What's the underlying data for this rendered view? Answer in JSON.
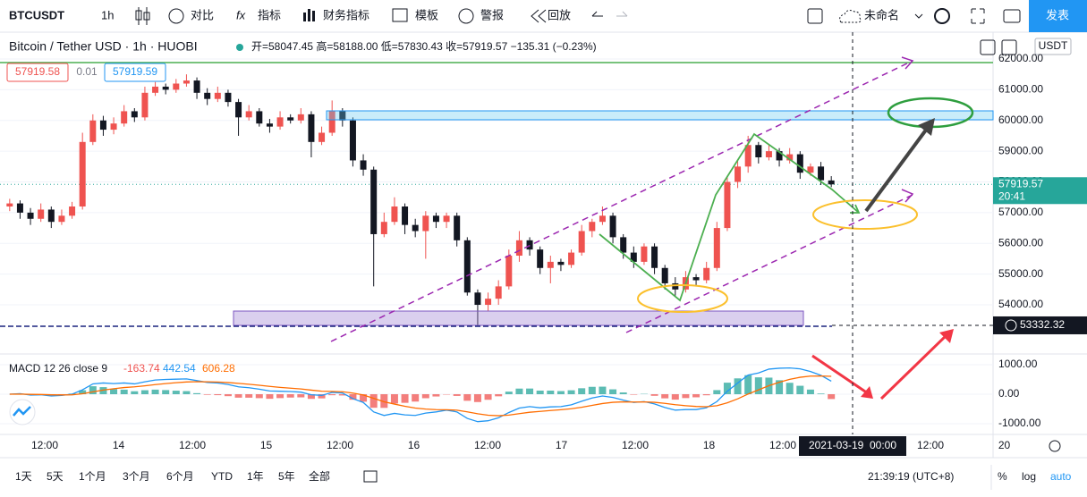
{
  "toolbar": {
    "symbol": "BTCUSDT",
    "interval": "1h",
    "items": [
      "对比",
      "指标",
      "财务指标",
      "模板",
      "警报",
      "回放"
    ],
    "layout_name": "未命名",
    "publish": "发表"
  },
  "chart_data": [
    {
      "type": "candlestick",
      "title": "Bitcoin / Tether USD · 1h · HUOBI",
      "subtitle": "开=58047.45 高=58188.00 低=57830.43 收=57919.57 −135.31 (−0.23%)",
      "order": [
        "57919.58",
        "0.01",
        "57919.59"
      ],
      "currency": "USDT",
      "countdown": "20:41",
      "crosshair": {
        "price": 53332.32,
        "time_label": "2021-03-19  00:00"
      },
      "xtick_labels": [
        "12:00",
        "14",
        "12:00",
        "15",
        "12:00",
        "16",
        "12:00",
        "17",
        "12:00",
        "18",
        "12:00",
        null,
        "12:00",
        "20"
      ],
      "up_color": "#ef5350",
      "down_color": "#131722",
      "last_price_color": "#26a69a",
      "grid": true,
      "ylim": [
        52430,
        62756
      ],
      "yticks": [
        {
          "value": 54000,
          "label": "54000.00"
        },
        {
          "value": 55000,
          "label": "55000.00"
        },
        {
          "value": 56000,
          "label": "56000.00"
        },
        {
          "value": 57000,
          "label": "57000.00"
        },
        {
          "value": 58000,
          "label": "58000.00"
        },
        {
          "value": 59000,
          "label": "59000.00"
        },
        {
          "value": 60000,
          "label": "60000.00"
        },
        {
          "value": 61000,
          "label": "61000.00"
        },
        {
          "value": 62000,
          "label": "62000.00"
        }
      ],
      "open": [
        57200,
        57300,
        57000,
        56800,
        57100,
        56700,
        56900,
        57200,
        59300,
        60000,
        59700,
        59900,
        60300,
        60100,
        60900,
        61100,
        61000,
        61200,
        61300,
        60900,
        60700,
        60900,
        60600,
        60100,
        60300,
        59900,
        59800,
        60100,
        60000,
        60200,
        59300,
        59600,
        60300,
        60000,
        58700,
        58400,
        56300,
        56700,
        57200,
        56600,
        56400,
        56900,
        56700,
        56900,
        56100,
        54400,
        54000,
        54200,
        54600,
        55600,
        56100,
        55800,
        55200,
        55400,
        55300,
        55700,
        56400,
        56700,
        56900,
        56200,
        55700,
        55400,
        55900,
        55200,
        54700,
        54500,
        54900,
        54800,
        55200,
        56500,
        58000,
        58500,
        59200,
        58800,
        59000,
        58700,
        58900,
        58300,
        58500,
        58047.45
      ],
      "high": [
        57450,
        57400,
        57150,
        57300,
        57200,
        57100,
        57350,
        59600,
        60200,
        60150,
        60100,
        60500,
        60400,
        61100,
        61250,
        61200,
        61350,
        61500,
        61400,
        61050,
        61100,
        61000,
        60700,
        60500,
        60400,
        60050,
        60300,
        60200,
        60400,
        60300,
        59800,
        60650,
        60400,
        60100,
        58900,
        58500,
        57000,
        57500,
        57300,
        56800,
        57050,
        57000,
        57000,
        57000,
        56200,
        54500,
        54400,
        54800,
        55800,
        56400,
        56200,
        55900,
        55600,
        55500,
        55800,
        56600,
        56800,
        57200,
        57000,
        56300,
        55900,
        56000,
        56000,
        55300,
        54900,
        55100,
        55000,
        55400,
        56700,
        58200,
        58700,
        59500,
        59300,
        59200,
        59100,
        59100,
        59000,
        58600,
        58650,
        58188
      ],
      "low": [
        57050,
        56800,
        56600,
        56700,
        56500,
        56600,
        56800,
        57100,
        59200,
        59500,
        59550,
        59800,
        59950,
        60000,
        60800,
        60850,
        60900,
        61100,
        60700,
        60500,
        60600,
        60450,
        59500,
        60000,
        59800,
        59600,
        59700,
        59900,
        59900,
        58800,
        59200,
        59500,
        59800,
        58500,
        58200,
        54600,
        56200,
        56600,
        56300,
        56200,
        55500,
        56500,
        56500,
        55900,
        54300,
        53300,
        53800,
        54000,
        54500,
        55400,
        55600,
        55000,
        54700,
        55100,
        55200,
        55600,
        56200,
        56600,
        56000,
        55500,
        55200,
        55300,
        55000,
        54500,
        54300,
        54400,
        54600,
        54700,
        55100,
        56400,
        57800,
        58300,
        58600,
        58700,
        58500,
        58600,
        58100,
        58200,
        57900,
        57830.43
      ],
      "close": [
        57300,
        57000,
        56800,
        57100,
        56700,
        56900,
        57200,
        59300,
        60000,
        59700,
        59900,
        60300,
        60100,
        60900,
        61100,
        61000,
        61200,
        61300,
        60900,
        60700,
        60900,
        60600,
        60100,
        60300,
        59900,
        59800,
        60100,
        60000,
        60200,
        59300,
        59600,
        60300,
        60000,
        58700,
        58400,
        56300,
        56700,
        57200,
        56600,
        56400,
        56900,
        56700,
        56900,
        56100,
        54400,
        54000,
        54200,
        54600,
        55600,
        56100,
        55800,
        55200,
        55400,
        55300,
        55700,
        56400,
        56700,
        56900,
        56200,
        55700,
        55400,
        55900,
        55200,
        54700,
        54500,
        54900,
        54800,
        55200,
        56500,
        58000,
        58500,
        59200,
        58800,
        59000,
        58700,
        58900,
        58300,
        58500,
        58054.88,
        57919.57
      ]
    },
    {
      "type": "macd",
      "title": "MACD 12 26 close 9",
      "ylim": [
        -1333,
        1303
      ],
      "yticks": [
        {
          "value": 1000,
          "label": "1000.00"
        },
        {
          "value": 0,
          "label": "0.00"
        },
        {
          "value": -1000,
          "label": "-1000.00"
        }
      ],
      "series": [
        {
          "color": "#2196f3",
          "values": [
            0,
            20,
            -30,
            -20,
            -60,
            -40,
            0,
            150,
            350,
            380,
            360,
            380,
            350,
            420,
            480,
            500,
            510,
            520,
            460,
            400,
            380,
            330,
            250,
            220,
            170,
            110,
            100,
            90,
            70,
            -20,
            -40,
            60,
            40,
            -150,
            -280,
            -600,
            -720,
            -650,
            -700,
            -720,
            -640,
            -600,
            -540,
            -600,
            -820,
            -930,
            -900,
            -800,
            -620,
            -470,
            -420,
            -460,
            -430,
            -420,
            -360,
            -240,
            -130,
            -60,
            -110,
            -200,
            -280,
            -250,
            -330,
            -450,
            -540,
            -520,
            -520,
            -460,
            -250,
            100,
            380,
            650,
            720,
            850,
            880,
            890,
            860,
            770,
            640,
            442.54
          ]
        },
        {
          "color": "#ff6d00",
          "values": [
            0,
            5,
            -5,
            -10,
            -20,
            -25,
            -20,
            15,
            80,
            140,
            185,
            225,
            250,
            285,
            325,
            360,
            390,
            415,
            425,
            420,
            412,
            396,
            367,
            338,
            304,
            265,
            232,
            204,
            177,
            138,
            102,
            94,
            83,
            37,
            -26,
            -141,
            -257,
            -335,
            -408,
            -470,
            -504,
            -523,
            -527,
            -541,
            -597,
            -664,
            -711,
            -729,
            -707,
            -660,
            -612,
            -582,
            -552,
            -526,
            -493,
            -442,
            -380,
            -316,
            -275,
            -260,
            -264,
            -261,
            -275,
            -310,
            -356,
            -389,
            -415,
            -424,
            -389,
            -291,
            -157,
            5,
            148,
            288,
            406,
            503,
            574,
            613,
            618,
            606.28
          ]
        }
      ],
      "histogram": {
        "up_color": "#26a69a",
        "down_color": "#ef5350",
        "values": [
          0,
          15,
          -25,
          -10,
          -40,
          -15,
          20,
          135,
          270,
          240,
          175,
          155,
          100,
          135,
          155,
          140,
          120,
          105,
          35,
          -20,
          -32,
          -66,
          -117,
          -118,
          -134,
          -155,
          -132,
          -114,
          -107,
          -158,
          -142,
          -34,
          -43,
          -187,
          -254,
          -459,
          -463,
          -315,
          -292,
          -250,
          -136,
          -77,
          -13,
          -59,
          -223,
          -266,
          -189,
          -71,
          87,
          190,
          192,
          122,
          122,
          106,
          133,
          202,
          250,
          256,
          165,
          60,
          -16,
          11,
          -55,
          -140,
          -184,
          -131,
          -105,
          -36,
          139,
          391,
          537,
          645,
          572,
          562,
          474,
          387,
          286,
          157,
          22,
          -163.74
        ]
      }
    }
  ],
  "bottom_bar": {
    "ranges": [
      "1天",
      "5天",
      "1个月",
      "3个月",
      "6个月",
      "YTD",
      "1年",
      "5年",
      "全部"
    ],
    "clock": "21:39:19 (UTC+8)",
    "scale_options": [
      "%",
      "log",
      "auto"
    ]
  }
}
